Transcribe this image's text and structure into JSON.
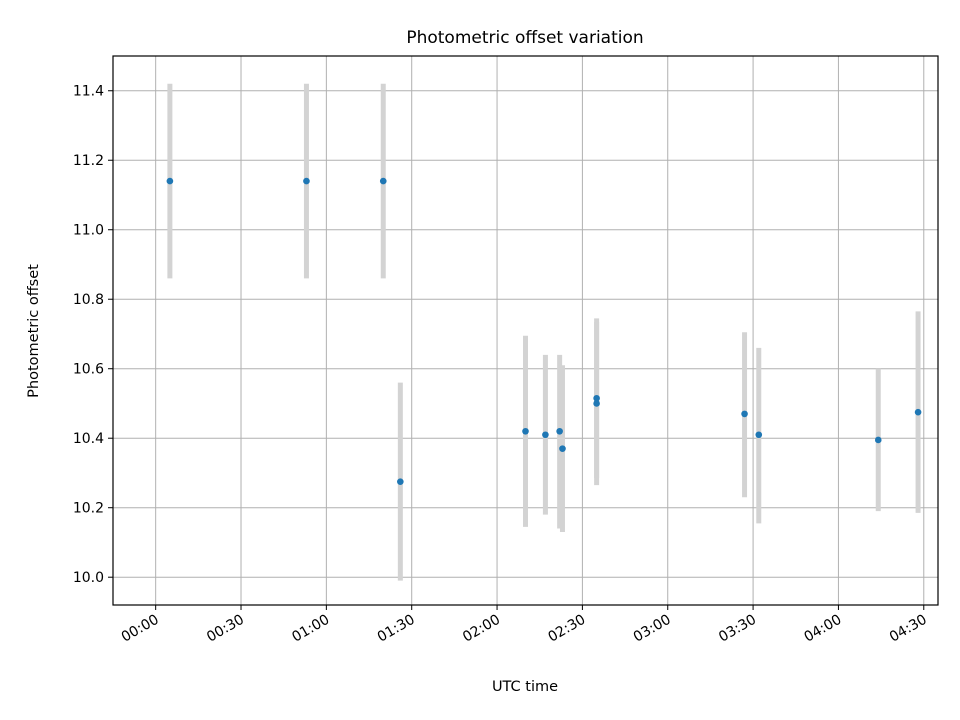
{
  "chart_data": {
    "type": "scatter",
    "title": "Photometric offset variation",
    "xlabel": "UTC time",
    "ylabel": "Photometric offset",
    "xlim": [
      "-00:15",
      "04:35"
    ],
    "ylim": [
      9.92,
      11.5
    ],
    "x_ticks": [
      "00:00",
      "00:30",
      "01:00",
      "01:30",
      "02:00",
      "02:30",
      "03:00",
      "03:30",
      "04:00",
      "04:30"
    ],
    "y_ticks": [
      10.0,
      10.2,
      10.4,
      10.6,
      10.8,
      11.0,
      11.2,
      11.4
    ],
    "grid": true,
    "point_color": "#1f77b4",
    "errorbar_color": "#d3d3d3",
    "points": [
      {
        "x": "00:05",
        "y": 11.14,
        "ylow": 10.86,
        "yhigh": 11.42
      },
      {
        "x": "00:53",
        "y": 11.14,
        "ylow": 10.86,
        "yhigh": 11.42
      },
      {
        "x": "01:20",
        "y": 11.14,
        "ylow": 10.86,
        "yhigh": 11.42
      },
      {
        "x": "01:26",
        "y": 10.275,
        "ylow": 9.99,
        "yhigh": 10.56
      },
      {
        "x": "02:10",
        "y": 10.42,
        "ylow": 10.145,
        "yhigh": 10.695
      },
      {
        "x": "02:17",
        "y": 10.41,
        "ylow": 10.18,
        "yhigh": 10.64
      },
      {
        "x": "02:22",
        "y": 10.42,
        "ylow": 10.14,
        "yhigh": 10.64
      },
      {
        "x": "02:23",
        "y": 10.37,
        "ylow": 10.13,
        "yhigh": 10.61
      },
      {
        "x": "02:35",
        "y": 10.515,
        "ylow": 10.285,
        "yhigh": 10.745
      },
      {
        "x": "02:35",
        "y": 10.5,
        "ylow": 10.265,
        "yhigh": 10.735
      },
      {
        "x": "03:27",
        "y": 10.47,
        "ylow": 10.23,
        "yhigh": 10.705
      },
      {
        "x": "03:32",
        "y": 10.41,
        "ylow": 10.155,
        "yhigh": 10.66
      },
      {
        "x": "04:14",
        "y": 10.395,
        "ylow": 10.19,
        "yhigh": 10.6
      },
      {
        "x": "04:28",
        "y": 10.475,
        "ylow": 10.185,
        "yhigh": 10.765
      }
    ]
  }
}
